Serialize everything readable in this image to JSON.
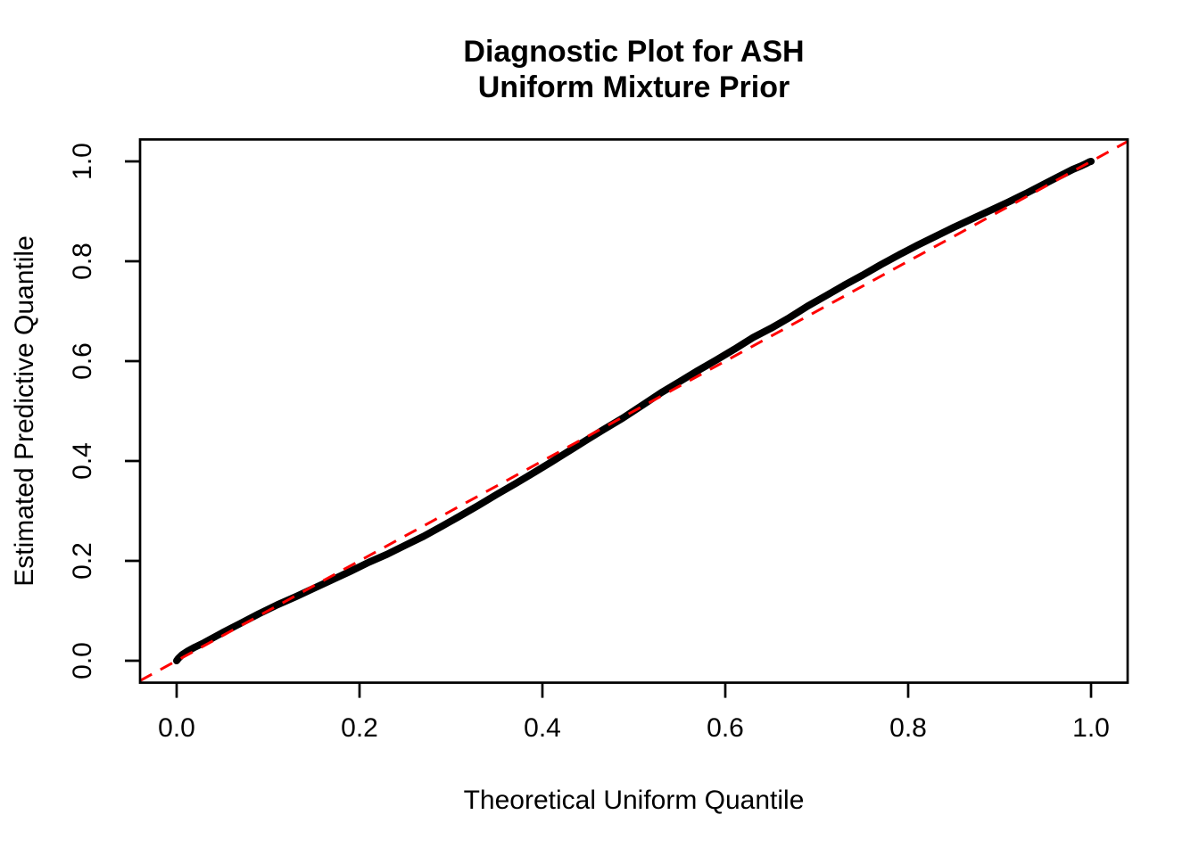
{
  "figure": {
    "background_color": "#ffffff",
    "text_color": "#000000"
  },
  "chart_data": {
    "type": "line",
    "title": "Diagnostic Plot for ASH",
    "subtitle": "Uniform Mixture Prior",
    "xlabel": "Theoretical Uniform Quantile",
    "ylabel": "Estimated Predictive Quantile",
    "xlim": [
      -0.04,
      1.04
    ],
    "ylim": [
      -0.044,
      1.044
    ],
    "grid": false,
    "legend": false,
    "x_ticks": [
      0.0,
      0.2,
      0.4,
      0.6,
      0.8,
      1.0
    ],
    "y_ticks": [
      0.0,
      0.2,
      0.4,
      0.6,
      0.8,
      1.0
    ],
    "x_tick_labels": [
      "0.0",
      "0.2",
      "0.4",
      "0.6",
      "0.8",
      "1.0"
    ],
    "y_tick_labels": [
      "0.0",
      "0.2",
      "0.4",
      "0.6",
      "0.8",
      "1.0"
    ],
    "series": [
      {
        "name": "estimated-predictive-quantiles",
        "color": "#000000",
        "style": "solid",
        "points": [
          [
            0.0,
            0.0
          ],
          [
            0.002,
            0.005
          ],
          [
            0.006,
            0.012
          ],
          [
            0.012,
            0.019
          ],
          [
            0.02,
            0.027
          ],
          [
            0.03,
            0.036
          ],
          [
            0.05,
            0.056
          ],
          [
            0.07,
            0.075
          ],
          [
            0.09,
            0.094
          ],
          [
            0.11,
            0.112
          ],
          [
            0.13,
            0.128
          ],
          [
            0.15,
            0.145
          ],
          [
            0.17,
            0.162
          ],
          [
            0.19,
            0.179
          ],
          [
            0.21,
            0.197
          ],
          [
            0.23,
            0.213
          ],
          [
            0.25,
            0.231
          ],
          [
            0.27,
            0.249
          ],
          [
            0.29,
            0.269
          ],
          [
            0.31,
            0.29
          ],
          [
            0.33,
            0.311
          ],
          [
            0.35,
            0.333
          ],
          [
            0.37,
            0.354
          ],
          [
            0.39,
            0.376
          ],
          [
            0.41,
            0.398
          ],
          [
            0.43,
            0.421
          ],
          [
            0.45,
            0.444
          ],
          [
            0.466,
            0.462
          ],
          [
            0.488,
            0.486
          ],
          [
            0.512,
            0.515
          ],
          [
            0.53,
            0.537
          ],
          [
            0.55,
            0.559
          ],
          [
            0.57,
            0.581
          ],
          [
            0.59,
            0.602
          ],
          [
            0.61,
            0.624
          ],
          [
            0.63,
            0.647
          ],
          [
            0.65,
            0.666
          ],
          [
            0.67,
            0.687
          ],
          [
            0.69,
            0.71
          ],
          [
            0.71,
            0.731
          ],
          [
            0.73,
            0.752
          ],
          [
            0.75,
            0.772
          ],
          [
            0.77,
            0.793
          ],
          [
            0.79,
            0.813
          ],
          [
            0.81,
            0.832
          ],
          [
            0.83,
            0.85
          ],
          [
            0.85,
            0.868
          ],
          [
            0.87,
            0.885
          ],
          [
            0.89,
            0.902
          ],
          [
            0.91,
            0.919
          ],
          [
            0.93,
            0.937
          ],
          [
            0.95,
            0.956
          ],
          [
            0.965,
            0.97
          ],
          [
            0.98,
            0.984
          ],
          [
            0.988,
            0.99
          ],
          [
            0.994,
            0.995
          ],
          [
            0.998,
            0.999
          ],
          [
            1.0,
            1.0
          ]
        ]
      },
      {
        "name": "reference-diagonal",
        "color": "#FF0000",
        "style": "dashed",
        "points": [
          [
            -0.04,
            -0.04
          ],
          [
            1.04,
            1.04
          ]
        ]
      }
    ]
  }
}
